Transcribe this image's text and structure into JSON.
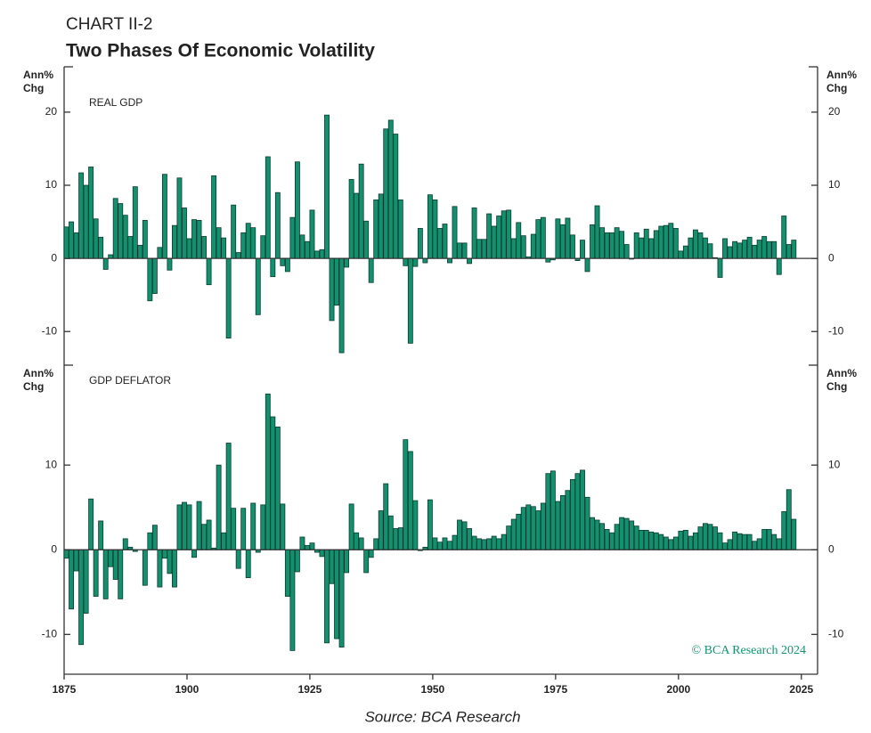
{
  "header": {
    "kicker": "CHART II-2",
    "title": "Two Phases Of Economic Volatility"
  },
  "copyright": "© BCA Research 2024",
  "source": "Source: BCA Research",
  "chart_data": [
    {
      "type": "bar",
      "label": "REAL GDP",
      "y_label": [
        "Ann%",
        "Chg"
      ],
      "color": "#14906f",
      "xlim": [
        1875,
        2028.3
      ],
      "ylim": [
        -14.6,
        26.2
      ],
      "yticks": [
        -10,
        0,
        10,
        20
      ],
      "x": [
        1875,
        1876,
        1877,
        1878,
        1879,
        1880,
        1881,
        1882,
        1883,
        1884,
        1885,
        1886,
        1887,
        1888,
        1889,
        1890,
        1891,
        1892,
        1893,
        1894,
        1895,
        1896,
        1897,
        1898,
        1899,
        1900,
        1901,
        1902,
        1903,
        1904,
        1905,
        1906,
        1907,
        1908,
        1909,
        1910,
        1911,
        1912,
        1913,
        1914,
        1915,
        1916,
        1917,
        1918,
        1919,
        1920,
        1921,
        1922,
        1923,
        1924,
        1925,
        1926,
        1927,
        1928,
        1929,
        1930,
        1931,
        1932,
        1933,
        1934,
        1935,
        1936,
        1937,
        1938,
        1939,
        1940,
        1941,
        1942,
        1943,
        1944,
        1945,
        1946,
        1947,
        1948,
        1949,
        1950,
        1951,
        1952,
        1953,
        1954,
        1955,
        1956,
        1957,
        1958,
        1959,
        1960,
        1961,
        1962,
        1963,
        1964,
        1965,
        1966,
        1967,
        1968,
        1969,
        1970,
        1971,
        1972,
        1973,
        1974,
        1975,
        1976,
        1977,
        1978,
        1979,
        1980,
        1981,
        1982,
        1983,
        1984,
        1985,
        1986,
        1987,
        1988,
        1989,
        1990,
        1991,
        1992,
        1993,
        1994,
        1995,
        1996,
        1997,
        1998,
        1999,
        2000,
        2001,
        2002,
        2003,
        2004,
        2005,
        2006,
        2007,
        2008,
        2009,
        2010,
        2011,
        2012,
        2013,
        2014,
        2015,
        2016,
        2017,
        2018,
        2019,
        2020,
        2021,
        2022,
        2023
      ],
      "values": [
        4.3,
        5.0,
        3.5,
        11.7,
        10.0,
        12.5,
        5.4,
        2.9,
        -1.5,
        0.5,
        8.2,
        7.5,
        5.9,
        3.0,
        9.8,
        1.8,
        5.2,
        -5.8,
        -4.8,
        1.5,
        11.5,
        -1.6,
        4.5,
        11.0,
        6.9,
        2.7,
        5.3,
        5.2,
        3.0,
        -3.6,
        11.3,
        4.2,
        2.8,
        -10.9,
        7.3,
        0.8,
        3.5,
        4.8,
        4.2,
        -7.7,
        3.1,
        13.9,
        -2.5,
        9.0,
        -1.0,
        -1.8,
        5.6,
        13.2,
        3.2,
        2.3,
        6.6,
        1.0,
        1.2,
        19.6,
        -8.5,
        -6.4,
        -12.9,
        -1.2,
        10.8,
        8.9,
        12.9,
        5.1,
        -3.3,
        8.0,
        8.8,
        17.7,
        18.9,
        17.0,
        8.0,
        -1.0,
        -11.6,
        -1.1,
        4.1,
        -0.6,
        8.7,
        8.0,
        4.1,
        4.7,
        -0.6,
        7.1,
        2.1,
        2.1,
        -0.7,
        6.9,
        2.6,
        2.6,
        6.1,
        4.4,
        5.8,
        6.5,
        6.6,
        2.7,
        4.9,
        3.1,
        0.2,
        3.3,
        5.3,
        5.6,
        -0.5,
        -0.2,
        5.4,
        4.6,
        5.5,
        3.2,
        -0.3,
        2.5,
        -1.8,
        4.6,
        7.2,
        4.2,
        3.5,
        3.5,
        4.2,
        3.7,
        1.9,
        -0.1,
        3.5,
        2.8,
        4.0,
        2.7,
        3.8,
        4.4,
        4.5,
        4.8,
        4.1,
        1.0,
        1.7,
        2.8,
        3.9,
        3.5,
        2.8,
        2.0,
        0.1,
        -2.6,
        2.7,
        1.6,
        2.3,
        2.1,
        2.5,
        2.9,
        1.8,
        2.5,
        3.0,
        2.3,
        2.3,
        -2.2,
        5.8,
        1.9,
        2.5
      ]
    },
    {
      "type": "bar",
      "label": "GDP DEFLATOR",
      "y_label": [
        "Ann%",
        "Chg"
      ],
      "color": "#14906f",
      "xlim": [
        1875,
        2028.3
      ],
      "ylim": [
        -14.7,
        21.8
      ],
      "yticks": [
        -10,
        0,
        10
      ],
      "xticks": [
        1875,
        1900,
        1925,
        1950,
        1975,
        2000,
        2025
      ],
      "x": [
        1875,
        1876,
        1877,
        1878,
        1879,
        1880,
        1881,
        1882,
        1883,
        1884,
        1885,
        1886,
        1887,
        1888,
        1889,
        1890,
        1891,
        1892,
        1893,
        1894,
        1895,
        1896,
        1897,
        1898,
        1899,
        1900,
        1901,
        1902,
        1903,
        1904,
        1905,
        1906,
        1907,
        1908,
        1909,
        1910,
        1911,
        1912,
        1913,
        1914,
        1915,
        1916,
        1917,
        1918,
        1919,
        1920,
        1921,
        1922,
        1923,
        1924,
        1925,
        1926,
        1927,
        1928,
        1929,
        1930,
        1931,
        1932,
        1933,
        1934,
        1935,
        1936,
        1937,
        1938,
        1939,
        1940,
        1941,
        1942,
        1943,
        1944,
        1945,
        1946,
        1947,
        1948,
        1949,
        1950,
        1951,
        1952,
        1953,
        1954,
        1955,
        1956,
        1957,
        1958,
        1959,
        1960,
        1961,
        1962,
        1963,
        1964,
        1965,
        1966,
        1967,
        1968,
        1969,
        1970,
        1971,
        1972,
        1973,
        1974,
        1975,
        1976,
        1977,
        1978,
        1979,
        1980,
        1981,
        1982,
        1983,
        1984,
        1985,
        1986,
        1987,
        1988,
        1989,
        1990,
        1991,
        1992,
        1993,
        1994,
        1995,
        1996,
        1997,
        1998,
        1999,
        2000,
        2001,
        2002,
        2003,
        2004,
        2005,
        2006,
        2007,
        2008,
        2009,
        2010,
        2011,
        2012,
        2013,
        2014,
        2015,
        2016,
        2017,
        2018,
        2019,
        2020,
        2021,
        2022,
        2023
      ],
      "values": [
        -1.0,
        -7.0,
        -2.5,
        -11.2,
        -7.5,
        6.0,
        -5.5,
        3.4,
        -5.8,
        -2.0,
        -3.5,
        -5.8,
        1.3,
        0.3,
        -0.2,
        0.0,
        -4.2,
        2.0,
        2.9,
        -4.4,
        -1.0,
        -2.8,
        -4.4,
        5.3,
        5.6,
        5.3,
        -0.9,
        5.7,
        3.0,
        3.5,
        0.2,
        10.0,
        2.0,
        12.6,
        4.9,
        -2.2,
        4.9,
        -3.3,
        5.5,
        -0.3,
        5.3,
        18.4,
        15.7,
        14.5,
        5.4,
        -5.5,
        -11.9,
        -2.6,
        1.5,
        0.5,
        0.8,
        -0.3,
        -0.8,
        -11.0,
        -4.0,
        -10.5,
        -11.5,
        -2.7,
        5.4,
        2.0,
        1.4,
        -2.7,
        -0.9,
        1.3,
        4.6,
        7.8,
        4.0,
        2.5,
        2.6,
        13.0,
        11.6,
        5.8,
        -0.1,
        0.3,
        5.9,
        1.4,
        0.9,
        1.4,
        1.0,
        1.7,
        3.5,
        3.3,
        2.5,
        1.6,
        1.3,
        1.2,
        1.3,
        1.6,
        1.3,
        1.8,
        2.8,
        3.6,
        4.2,
        5.0,
        5.3,
        5.1,
        4.6,
        5.5,
        9.0,
        9.3,
        5.7,
        6.4,
        7.0,
        8.3,
        9.0,
        9.4,
        6.2,
        3.8,
        3.5,
        3.1,
        2.4,
        2.0,
        3.0,
        3.8,
        3.7,
        3.4,
        2.8,
        2.3,
        2.3,
        2.1,
        2.0,
        1.8,
        1.5,
        1.2,
        1.5,
        2.2,
        2.3,
        1.6,
        2.0,
        2.7,
        3.1,
        3.0,
        2.7,
        2.0,
        0.8,
        1.2,
        2.1,
        1.9,
        1.8,
        1.8,
        1.0,
        1.3,
        2.4,
        2.4,
        1.8,
        1.3,
        4.5,
        7.1,
        3.6
      ]
    }
  ]
}
